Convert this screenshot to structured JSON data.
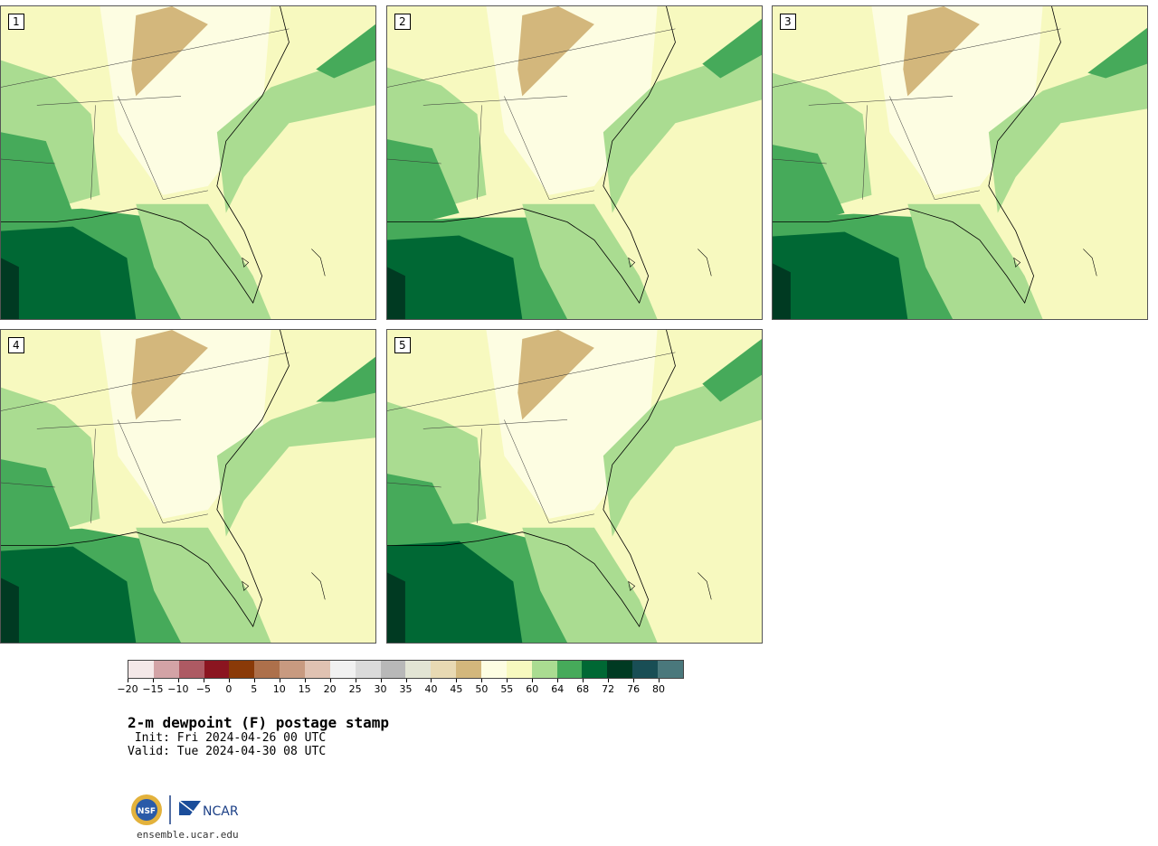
{
  "panels": [
    {
      "label": "1"
    },
    {
      "label": "2"
    },
    {
      "label": "3"
    },
    {
      "label": "4"
    },
    {
      "label": "5"
    }
  ],
  "colorbar": {
    "colors": [
      "#f4e8e8",
      "#d3a3a6",
      "#ad5a63",
      "#8b1520",
      "#8a3a08",
      "#ad704b",
      "#c89a80",
      "#e0c2b2",
      "#f1f1f1",
      "#dadada",
      "#b8b8b8",
      "#e2e4d4",
      "#e8d9b3",
      "#d3b77c",
      "#fdfde2",
      "#f7f9bf",
      "#aadc91",
      "#46aa5a",
      "#006834",
      "#003a22",
      "#194e55",
      "#4a787c"
    ],
    "tick_labels": [
      "-20",
      "-15",
      "-10",
      "-5",
      "0",
      "5",
      "10",
      "15",
      "20",
      "25",
      "30",
      "35",
      "40",
      "45",
      "50",
      "55",
      "60",
      "64",
      "68",
      "72",
      "76",
      "80"
    ]
  },
  "title": "2-m dewpoint (F) postage stamp",
  "init": " Init: Fri 2024-04-26 00 UTC",
  "valid": "Valid: Tue 2024-04-30 08 UTC",
  "logos": {
    "nsf_text": "NSF",
    "ncar_text": "NCAR"
  },
  "url": "ensemble.ucar.edu"
}
